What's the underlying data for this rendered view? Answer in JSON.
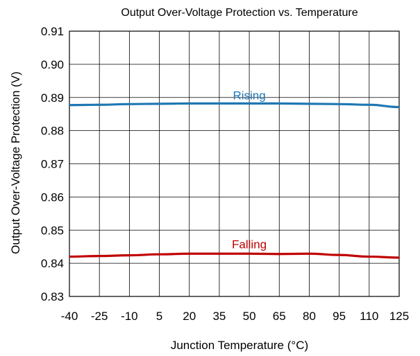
{
  "chart_data": {
    "type": "line",
    "title": "Output Over-Voltage Protection vs. Temperature",
    "xlabel": "Junction Temperature (°C)",
    "ylabel": "Output Over-Voltage Protection (V)",
    "xlim": [
      -40,
      125
    ],
    "ylim": [
      0.83,
      0.91
    ],
    "x_ticks": [
      -40,
      -25,
      -10,
      5,
      20,
      35,
      50,
      65,
      80,
      95,
      110,
      125
    ],
    "y_ticks": [
      "0.83",
      "0.84",
      "0.85",
      "0.86",
      "0.87",
      "0.88",
      "0.89",
      "0.90",
      "0.91"
    ],
    "grid": true,
    "series": [
      {
        "name": "Rising",
        "color": "#1f77b4",
        "x": [
          -40,
          -25,
          -10,
          5,
          20,
          35,
          50,
          65,
          80,
          95,
          110,
          125
        ],
        "y": [
          0.8877,
          0.8878,
          0.888,
          0.8881,
          0.8882,
          0.8882,
          0.8882,
          0.8882,
          0.8881,
          0.888,
          0.8878,
          0.8871
        ]
      },
      {
        "name": "Falling",
        "color": "#c00000",
        "x": [
          -40,
          -25,
          -10,
          5,
          20,
          35,
          50,
          65,
          80,
          95,
          110,
          125
        ],
        "y": [
          0.842,
          0.8422,
          0.8424,
          0.8427,
          0.8429,
          0.8429,
          0.8429,
          0.8428,
          0.8429,
          0.8425,
          0.842,
          0.8417
        ]
      }
    ],
    "annotations": [
      {
        "text": "Rising",
        "x": 50,
        "y": 0.8894,
        "color": "#1f77b4"
      },
      {
        "text": "Falling",
        "x": 50,
        "y": 0.8445,
        "color": "#c00000"
      }
    ]
  }
}
